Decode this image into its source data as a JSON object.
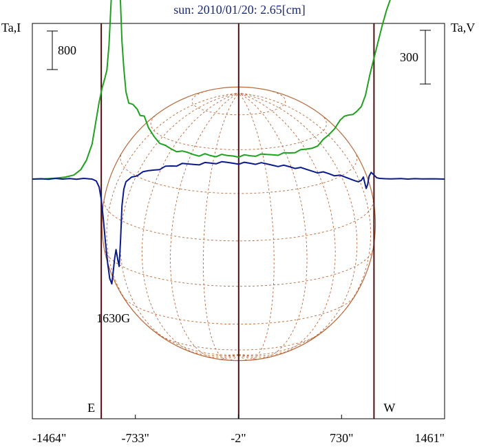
{
  "chart_data": {
    "type": "line",
    "title": "sun: 2010/01/20: 2.65[cm]",
    "left_axis_label": "Ta,I",
    "right_axis_label": "Ta,V",
    "scale_bars": [
      {
        "side": "left",
        "label": "800",
        "value": 800
      },
      {
        "side": "right",
        "label": "300",
        "value": 300
      }
    ],
    "x_ticks": [
      {
        "value": -1464,
        "label": "-1464\""
      },
      {
        "value": -733,
        "label": "-733\""
      },
      {
        "value": -2,
        "label": "-2\""
      },
      {
        "value": 730,
        "label": "730\""
      },
      {
        "value": 1461,
        "label": "1461\""
      }
    ],
    "xlim": [
      -1464,
      1461
    ],
    "limb_markers": [
      {
        "x": -975,
        "label": "E"
      },
      {
        "x": 0,
        "label": ""
      },
      {
        "x": 960,
        "label": "W"
      }
    ],
    "solar_disk": {
      "center_x": 0,
      "radius": 970,
      "color": "#b8683a"
    },
    "annotations": [
      {
        "text": "1630G",
        "x": -880
      }
    ],
    "series": [
      {
        "axis": "left",
        "color": "#1fa01f",
        "points": [
          [
            -1464,
            0
          ],
          [
            -1380,
            2
          ],
          [
            -1300,
            12
          ],
          [
            -1230,
            30
          ],
          [
            -1170,
            60
          ],
          [
            -1120,
            140
          ],
          [
            -1080,
            280
          ],
          [
            -1040,
            520
          ],
          [
            -1010,
            900
          ],
          [
            -990,
            1150
          ],
          [
            -970,
            1350
          ],
          [
            -950,
            1500
          ],
          [
            -935,
            1620
          ],
          [
            -920,
            2000
          ],
          [
            -905,
            2650
          ],
          [
            -890,
            3200
          ],
          [
            -878,
            3550
          ],
          [
            -868,
            3600
          ],
          [
            -858,
            3500
          ],
          [
            -848,
            3050
          ],
          [
            -838,
            2600
          ],
          [
            -828,
            2050
          ],
          [
            -815,
            1650
          ],
          [
            -800,
            1300
          ],
          [
            -780,
            1150
          ],
          [
            -750,
            1100
          ],
          [
            -720,
            1040
          ],
          [
            -700,
            960
          ],
          [
            -670,
            920
          ],
          [
            -640,
            760
          ],
          [
            -600,
            640
          ],
          [
            -560,
            550
          ],
          [
            -520,
            490
          ],
          [
            -480,
            450
          ],
          [
            -440,
            420
          ],
          [
            -400,
            400
          ],
          [
            -360,
            390
          ],
          [
            -320,
            370
          ],
          [
            -280,
            360
          ],
          [
            -240,
            365
          ],
          [
            -200,
            350
          ],
          [
            -160,
            345
          ],
          [
            -120,
            350
          ],
          [
            -80,
            345
          ],
          [
            -40,
            350
          ],
          [
            0,
            345
          ],
          [
            40,
            350
          ],
          [
            80,
            348
          ],
          [
            120,
            352
          ],
          [
            160,
            355
          ],
          [
            200,
            360
          ],
          [
            240,
            368
          ],
          [
            280,
            372
          ],
          [
            320,
            380
          ],
          [
            360,
            390
          ],
          [
            400,
            405
          ],
          [
            440,
            420
          ],
          [
            480,
            440
          ],
          [
            520,
            465
          ],
          [
            560,
            510
          ],
          [
            600,
            580
          ],
          [
            640,
            660
          ],
          [
            680,
            760
          ],
          [
            720,
            860
          ],
          [
            750,
            930
          ],
          [
            780,
            960
          ],
          [
            810,
            980
          ],
          [
            840,
            1000
          ],
          [
            870,
            1080
          ],
          [
            900,
            1250
          ],
          [
            930,
            1550
          ],
          [
            960,
            1800
          ],
          [
            990,
            2050
          ],
          [
            1020,
            2300
          ],
          [
            1050,
            2520
          ],
          [
            1080,
            2700
          ],
          [
            1110,
            2830
          ],
          [
            1140,
            2920
          ],
          [
            1180,
            2980
          ],
          [
            1230,
            3030
          ],
          [
            1290,
            3060
          ],
          [
            1350,
            3075
          ],
          [
            1400,
            3080
          ],
          [
            1461,
            3080
          ]
        ]
      },
      {
        "axis": "left",
        "color": "#0a1a8c",
        "points": [
          [
            -1464,
            0
          ],
          [
            -1400,
            5
          ],
          [
            -1350,
            -3
          ],
          [
            -1300,
            10
          ],
          [
            -1250,
            0
          ],
          [
            -1200,
            8
          ],
          [
            -1150,
            -2
          ],
          [
            -1100,
            10
          ],
          [
            -1040,
            0
          ],
          [
            -1010,
            -30
          ],
          [
            -990,
            -120
          ],
          [
            -975,
            -300
          ],
          [
            -960,
            -600
          ],
          [
            -945,
            -950
          ],
          [
            -930,
            -1250
          ],
          [
            -915,
            -1480
          ],
          [
            -900,
            -1560
          ],
          [
            -890,
            -1380
          ],
          [
            -880,
            -1180
          ],
          [
            -870,
            -1050
          ],
          [
            -858,
            -1200
          ],
          [
            -848,
            -1300
          ],
          [
            -838,
            -900
          ],
          [
            -828,
            -400
          ],
          [
            -815,
            -150
          ],
          [
            -800,
            -40
          ],
          [
            -760,
            30
          ],
          [
            -720,
            60
          ],
          [
            -680,
            90
          ],
          [
            -640,
            120
          ],
          [
            -600,
            140
          ],
          [
            -560,
            160
          ],
          [
            -520,
            180
          ],
          [
            -480,
            195
          ],
          [
            -440,
            205
          ],
          [
            -400,
            215
          ],
          [
            -360,
            220
          ],
          [
            -320,
            225
          ],
          [
            -280,
            230
          ],
          [
            -240,
            235
          ],
          [
            -200,
            238
          ],
          [
            -160,
            240
          ],
          [
            -120,
            240
          ],
          [
            -80,
            242
          ],
          [
            -40,
            242
          ],
          [
            0,
            240
          ],
          [
            40,
            238
          ],
          [
            80,
            236
          ],
          [
            120,
            232
          ],
          [
            160,
            226
          ],
          [
            200,
            220
          ],
          [
            240,
            212
          ],
          [
            280,
            205
          ],
          [
            320,
            195
          ],
          [
            360,
            185
          ],
          [
            400,
            170
          ],
          [
            440,
            155
          ],
          [
            480,
            140
          ],
          [
            520,
            125
          ],
          [
            560,
            110
          ],
          [
            600,
            95
          ],
          [
            640,
            80
          ],
          [
            680,
            60
          ],
          [
            720,
            40
          ],
          [
            760,
            20
          ],
          [
            800,
            0
          ],
          [
            830,
            -10
          ],
          [
            850,
            -40
          ],
          [
            870,
            -20
          ],
          [
            885,
            30
          ],
          [
            895,
            -60
          ],
          [
            905,
            -140
          ],
          [
            915,
            -80
          ],
          [
            925,
            40
          ],
          [
            940,
            100
          ],
          [
            960,
            60
          ],
          [
            980,
            20
          ],
          [
            1000,
            10
          ],
          [
            1040,
            5
          ],
          [
            1080,
            2
          ],
          [
            1150,
            8
          ],
          [
            1200,
            0
          ],
          [
            1250,
            6
          ],
          [
            1300,
            2
          ],
          [
            1380,
            4
          ],
          [
            1461,
            0
          ]
        ]
      }
    ],
    "grid": false
  }
}
